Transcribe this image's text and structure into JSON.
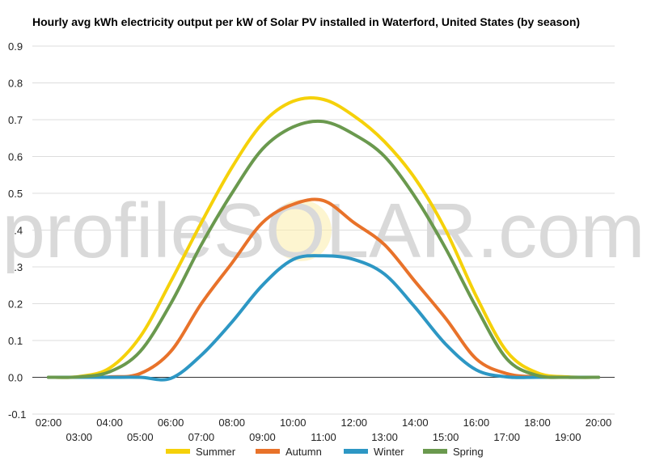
{
  "chart_data": {
    "type": "line",
    "title": "Hourly avg kWh electricity output per kW of Solar PV installed in Waterford, United States (by season)",
    "xlabel": "",
    "ylabel": "",
    "x": [
      "02:00",
      "03:00",
      "04:00",
      "05:00",
      "06:00",
      "07:00",
      "08:00",
      "09:00",
      "10:00",
      "11:00",
      "12:00",
      "13:00",
      "14:00",
      "15:00",
      "16:00",
      "17:00",
      "18:00",
      "19:00",
      "20:00"
    ],
    "yticks": [
      "-0.1",
      "0.0",
      "0.1",
      "0.2",
      "0.3",
      "0.4",
      "0.5",
      "0.6",
      "0.7",
      "0.8",
      "0.9"
    ],
    "ylim": [
      -0.1,
      0.9
    ],
    "grid": true,
    "legend_position": "bottom",
    "series": [
      {
        "name": "Summer",
        "color": "#f5d10a",
        "values": [
          0.0,
          0.002,
          0.025,
          0.11,
          0.26,
          0.42,
          0.57,
          0.69,
          0.75,
          0.755,
          0.71,
          0.64,
          0.54,
          0.4,
          0.22,
          0.07,
          0.012,
          0.001,
          0.0
        ]
      },
      {
        "name": "Autumn",
        "color": "#e8722a",
        "values": [
          0.0,
          0.0,
          0.001,
          0.01,
          0.07,
          0.2,
          0.31,
          0.42,
          0.47,
          0.48,
          0.42,
          0.36,
          0.26,
          0.16,
          0.05,
          0.01,
          0.001,
          0.0,
          0.0
        ]
      },
      {
        "name": "Winter",
        "color": "#2d97c4",
        "values": [
          0.0,
          0.0,
          0.0,
          0.0,
          -0.003,
          0.06,
          0.15,
          0.25,
          0.32,
          0.33,
          0.32,
          0.28,
          0.19,
          0.09,
          0.02,
          0.001,
          0.0,
          0.0,
          0.0
        ]
      },
      {
        "name": "Spring",
        "color": "#6a994e",
        "values": [
          0.0,
          0.001,
          0.015,
          0.07,
          0.2,
          0.36,
          0.5,
          0.62,
          0.68,
          0.695,
          0.66,
          0.6,
          0.49,
          0.35,
          0.19,
          0.05,
          0.005,
          0.0,
          0.0
        ]
      }
    ]
  },
  "watermark": "profileSOLAR.com"
}
